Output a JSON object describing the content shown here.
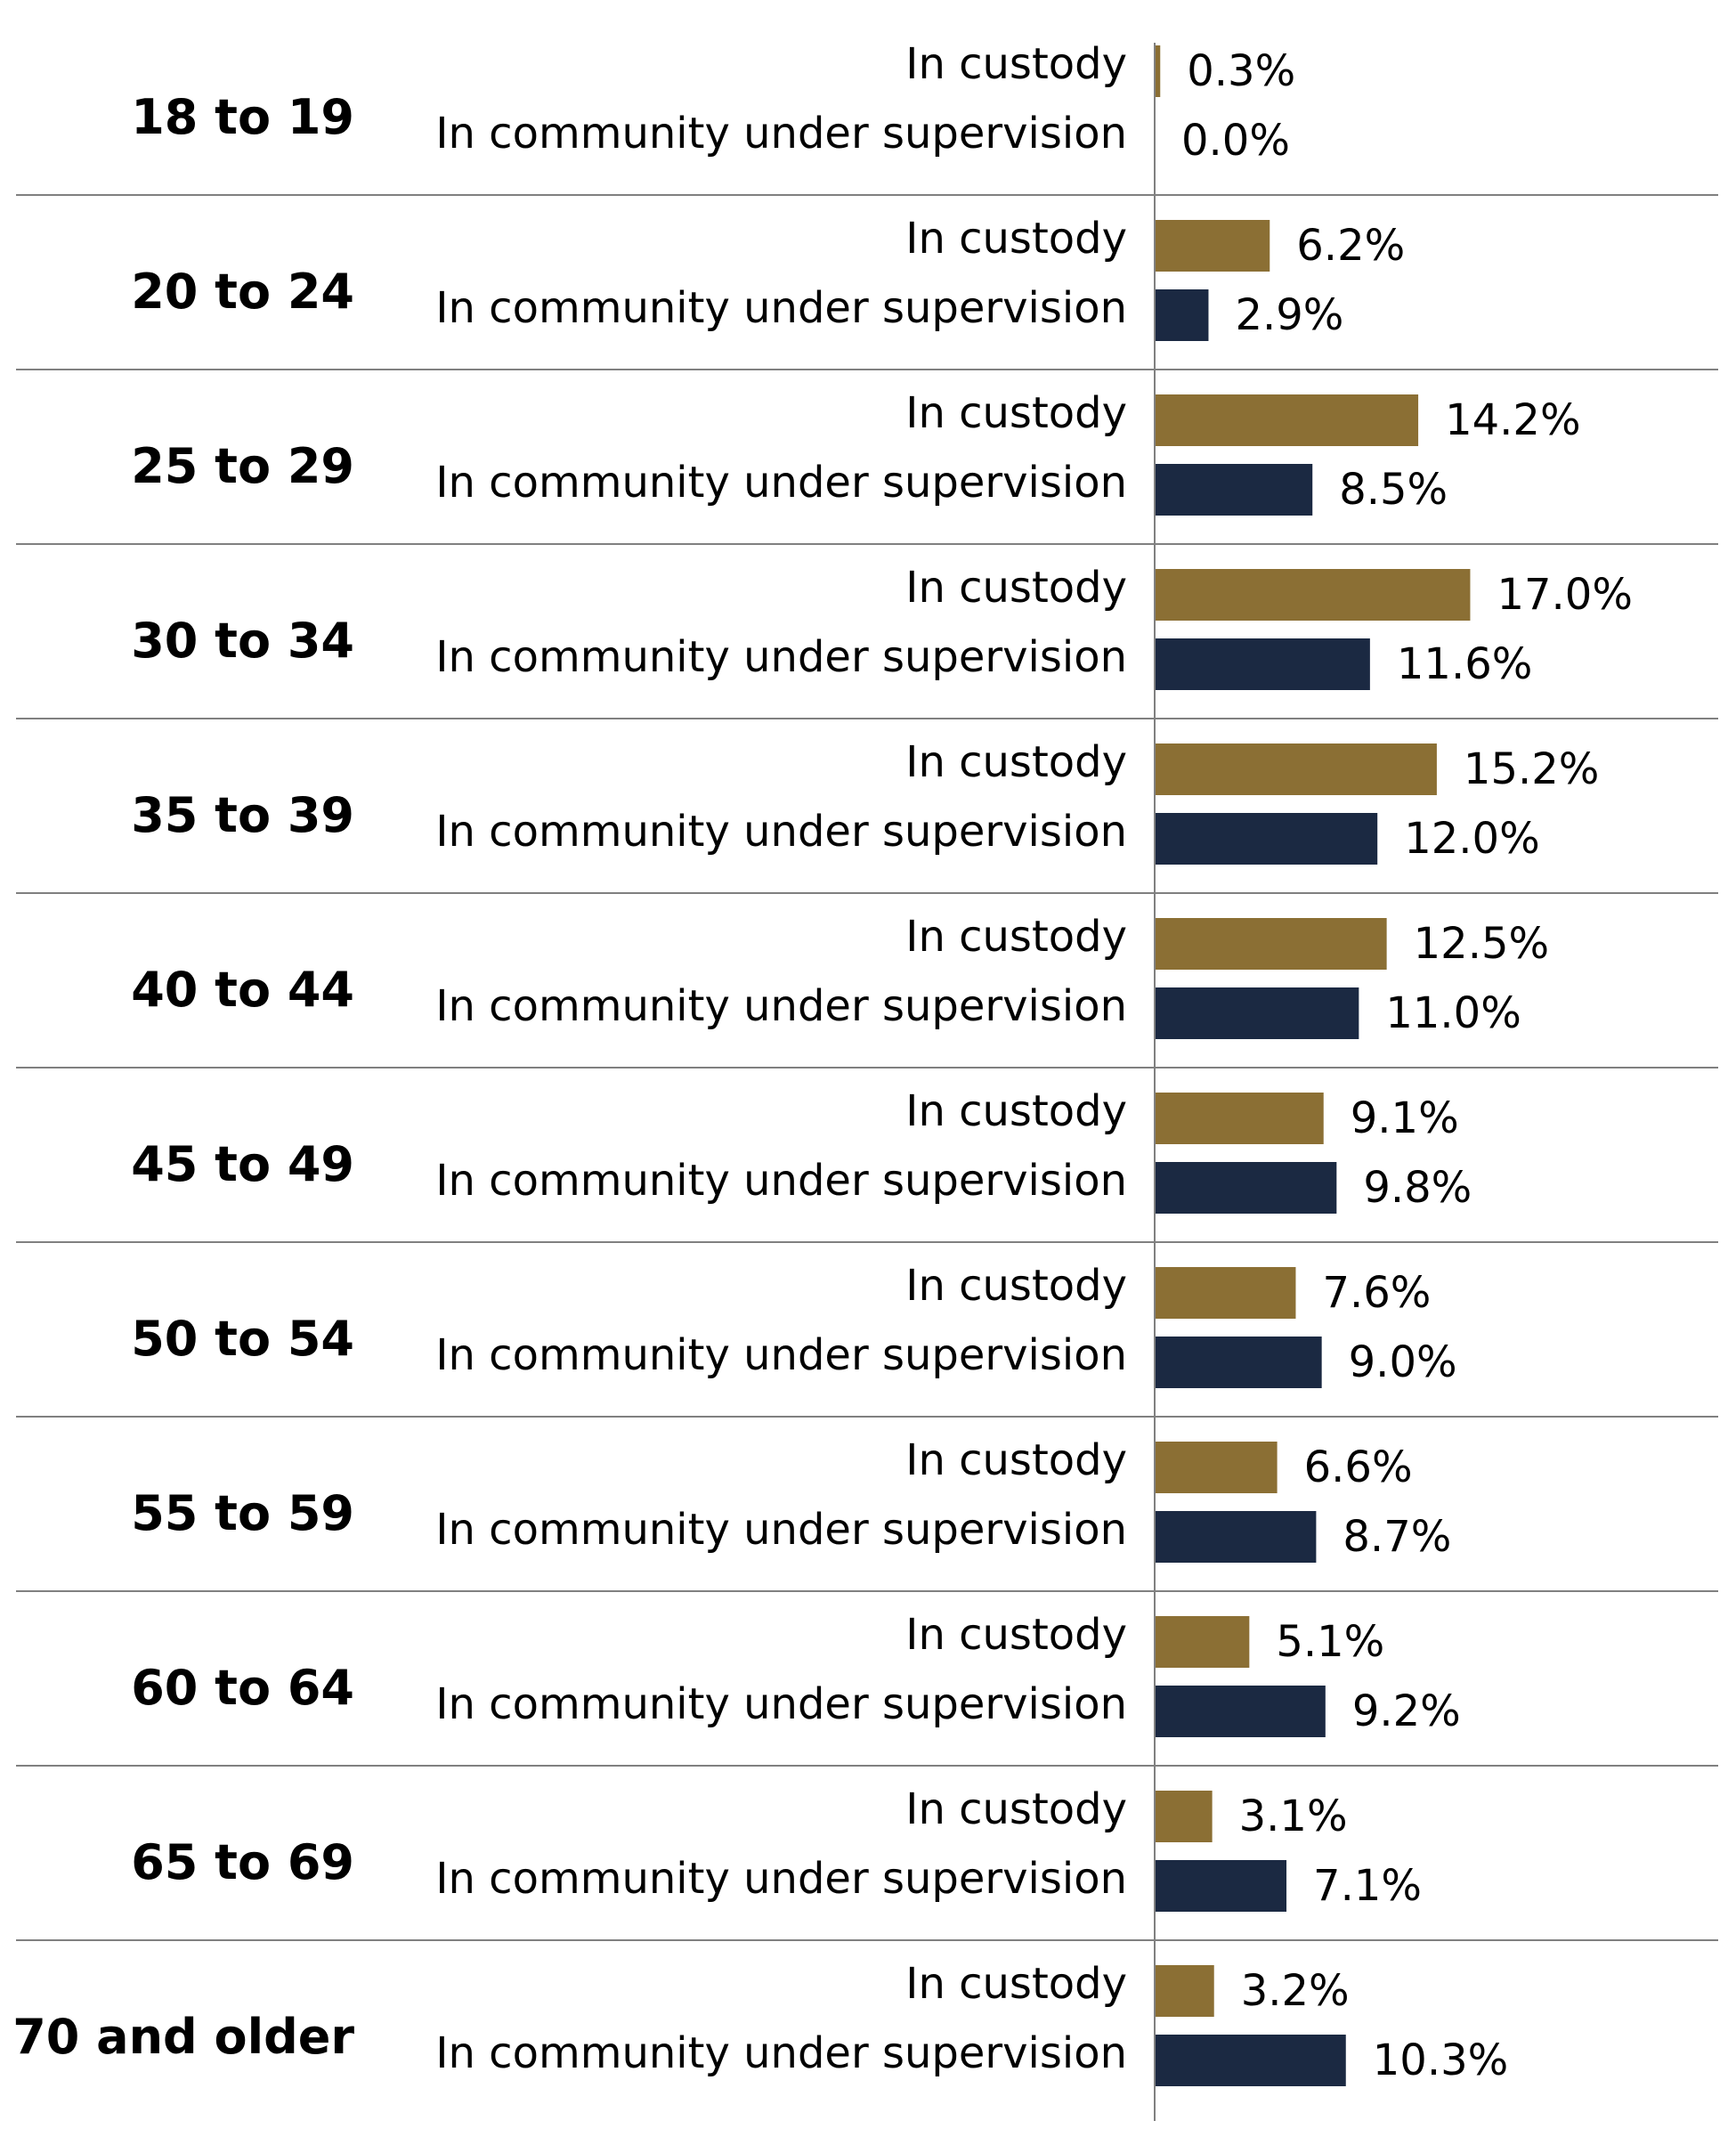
{
  "chart_data": {
    "type": "bar",
    "orientation": "horizontal",
    "title": "",
    "xlabel": "",
    "ylabel": "",
    "grid": false,
    "legend": "none",
    "xlim": [
      0,
      20
    ],
    "colors": {
      "In custody": "#8B6F34",
      "In community under supervision": "#1B2942"
    },
    "categories": [
      "18 to 19",
      "20 to 24",
      "25 to 29",
      "30 to 34",
      "35 to 39",
      "40 to 44",
      "45 to 49",
      "50 to 54",
      "55 to 59",
      "60 to 64",
      "65 to 69",
      "70 and older"
    ],
    "series": [
      {
        "name": "In custody",
        "values": [
          0.3,
          6.2,
          14.2,
          17.0,
          15.2,
          12.5,
          9.1,
          7.6,
          6.6,
          5.1,
          3.1,
          3.2
        ],
        "labels": [
          "0.3%",
          "6.2%",
          "14.2%",
          "17.0%",
          "15.2%",
          "12.5%",
          "9.1%",
          "7.6%",
          "6.6%",
          "5.1%",
          "3.1%",
          "3.2%"
        ]
      },
      {
        "name": "In community under supervision",
        "values": [
          0.0,
          2.9,
          8.5,
          11.6,
          12.0,
          11.0,
          9.8,
          9.0,
          8.7,
          9.2,
          7.1,
          10.3
        ],
        "labels": [
          "0.0%",
          "2.9%",
          "8.5%",
          "11.6%",
          "12.0%",
          "11.0%",
          "9.8%",
          "9.0%",
          "8.7%",
          "9.2%",
          "7.1%",
          "10.3%"
        ]
      }
    ]
  }
}
